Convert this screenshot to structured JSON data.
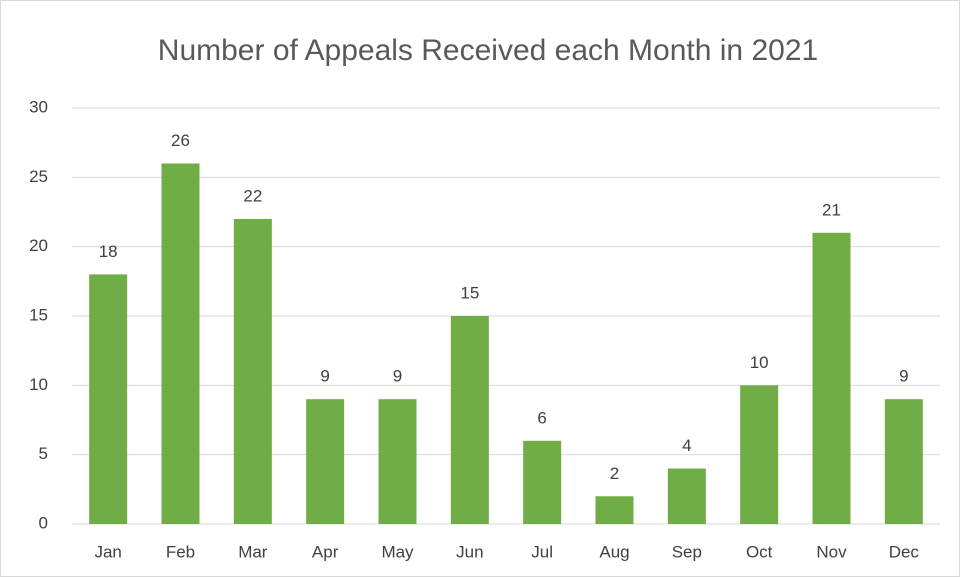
{
  "chart_data": {
    "type": "bar",
    "title": "Number of Appeals Received each Month in 2021",
    "categories": [
      "Jan",
      "Feb",
      "Mar",
      "Apr",
      "May",
      "Jun",
      "Jul",
      "Aug",
      "Sep",
      "Oct",
      "Nov",
      "Dec"
    ],
    "values": [
      18,
      26,
      22,
      9,
      9,
      15,
      6,
      2,
      4,
      10,
      21,
      9
    ],
    "color": "#70ad47",
    "ylim": [
      0,
      30
    ],
    "yticks": [
      0,
      5,
      10,
      15,
      20,
      25,
      30
    ],
    "grid": true
  }
}
